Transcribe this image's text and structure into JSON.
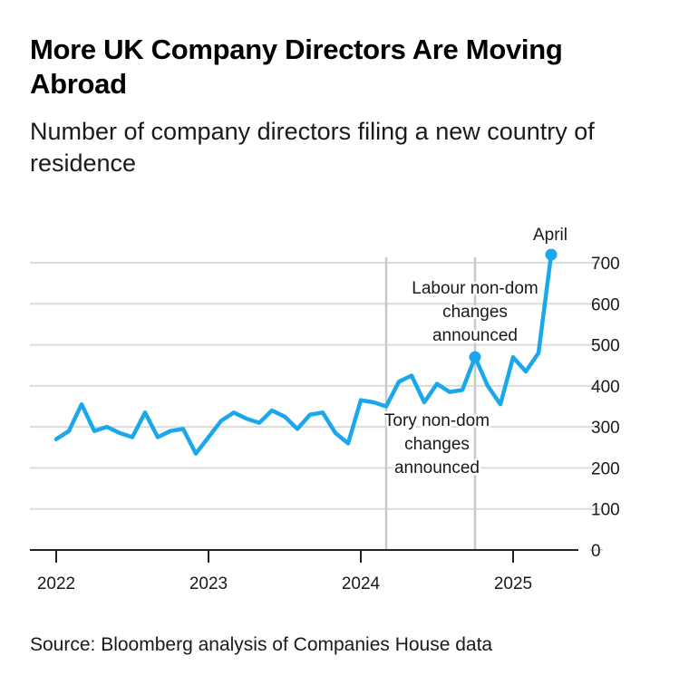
{
  "title": "More UK Company Directors Are Moving Abroad",
  "subtitle": "Number of company directors filing a new country of residence",
  "source": "Source: Bloomberg analysis of Companies House data",
  "colors": {
    "line": "#1aa7ec",
    "grid": "#dcdcdc",
    "annotation_line": "#c8c8c8",
    "axis": "#222222"
  },
  "chart_data": {
    "type": "line",
    "title": "More UK Company Directors Are Moving Abroad",
    "subtitle": "Number of company directors filing a new country of residence",
    "xlabel": "",
    "ylabel": "",
    "ylim": [
      0,
      700
    ],
    "y_ticks": [
      0,
      100,
      200,
      300,
      400,
      500,
      600,
      700
    ],
    "y_tick_labels": [
      "0",
      "100",
      "200",
      "300",
      "400",
      "500",
      "600",
      "700"
    ],
    "x_ticks": [
      "2022-01",
      "2023-01",
      "2024-01",
      "2025-01"
    ],
    "x_tick_labels": [
      "2022",
      "2023",
      "2024",
      "2025"
    ],
    "grid": true,
    "y_axis_side": "right",
    "series": [
      {
        "x": [
          "2022-01",
          "2022-02",
          "2022-03",
          "2022-04",
          "2022-05",
          "2022-06",
          "2022-07",
          "2022-08",
          "2022-09",
          "2022-10",
          "2022-11",
          "2022-12",
          "2023-01",
          "2023-02",
          "2023-03",
          "2023-04",
          "2023-05",
          "2023-06",
          "2023-07",
          "2023-08",
          "2023-09",
          "2023-10",
          "2023-11",
          "2023-12",
          "2024-01",
          "2024-02",
          "2024-03",
          "2024-04",
          "2024-05",
          "2024-06",
          "2024-07",
          "2024-08",
          "2024-09",
          "2024-10",
          "2024-11",
          "2024-12",
          "2025-01",
          "2025-02",
          "2025-03",
          "2025-04"
        ],
        "values": [
          270,
          290,
          355,
          290,
          300,
          285,
          275,
          335,
          275,
          290,
          295,
          235,
          275,
          315,
          335,
          320,
          310,
          340,
          325,
          295,
          330,
          335,
          285,
          260,
          365,
          360,
          350,
          410,
          425,
          360,
          405,
          385,
          390,
          470,
          400,
          355,
          470,
          435,
          480,
          720
        ]
      }
    ],
    "annotations": [
      {
        "text": [
          "Tory non-dom",
          "changes",
          "announced"
        ],
        "x": "2024-03"
      },
      {
        "text": [
          "Labour non-dom",
          "changes",
          "announced"
        ],
        "x": "2024-10",
        "y": 470
      },
      {
        "text": [
          "April"
        ],
        "x": "2025-04",
        "y": 720
      }
    ]
  }
}
